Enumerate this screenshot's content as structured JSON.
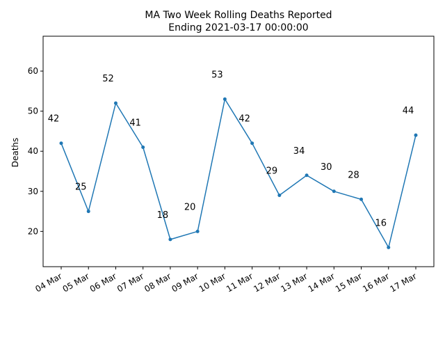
{
  "chart_data": {
    "type": "line",
    "title": "MA Two Week Rolling Deaths Reported",
    "subtitle": "Ending 2021-03-17 00:00:00",
    "xlabel": "",
    "ylabel": "Deaths",
    "categories": [
      "04 Mar",
      "05 Mar",
      "06 Mar",
      "07 Mar",
      "08 Mar",
      "09 Mar",
      "10 Mar",
      "11 Mar",
      "12 Mar",
      "13 Mar",
      "14 Mar",
      "15 Mar",
      "16 Mar",
      "17 Mar"
    ],
    "series": [
      {
        "values": [
          42,
          25,
          52,
          41,
          18,
          20,
          53,
          42,
          29,
          34,
          30,
          28,
          16,
          44
        ],
        "color": "#1f77b4"
      }
    ],
    "data_labels": [
      "42",
      "25",
      "52",
      "41",
      "18",
      "20",
      "53",
      "42",
      "29",
      "34",
      "30",
      "28",
      "16",
      "44"
    ],
    "yticks": [
      20,
      30,
      40,
      50,
      60
    ],
    "ylim": [
      11.2,
      68.7
    ],
    "grid": false,
    "legend": "none"
  }
}
